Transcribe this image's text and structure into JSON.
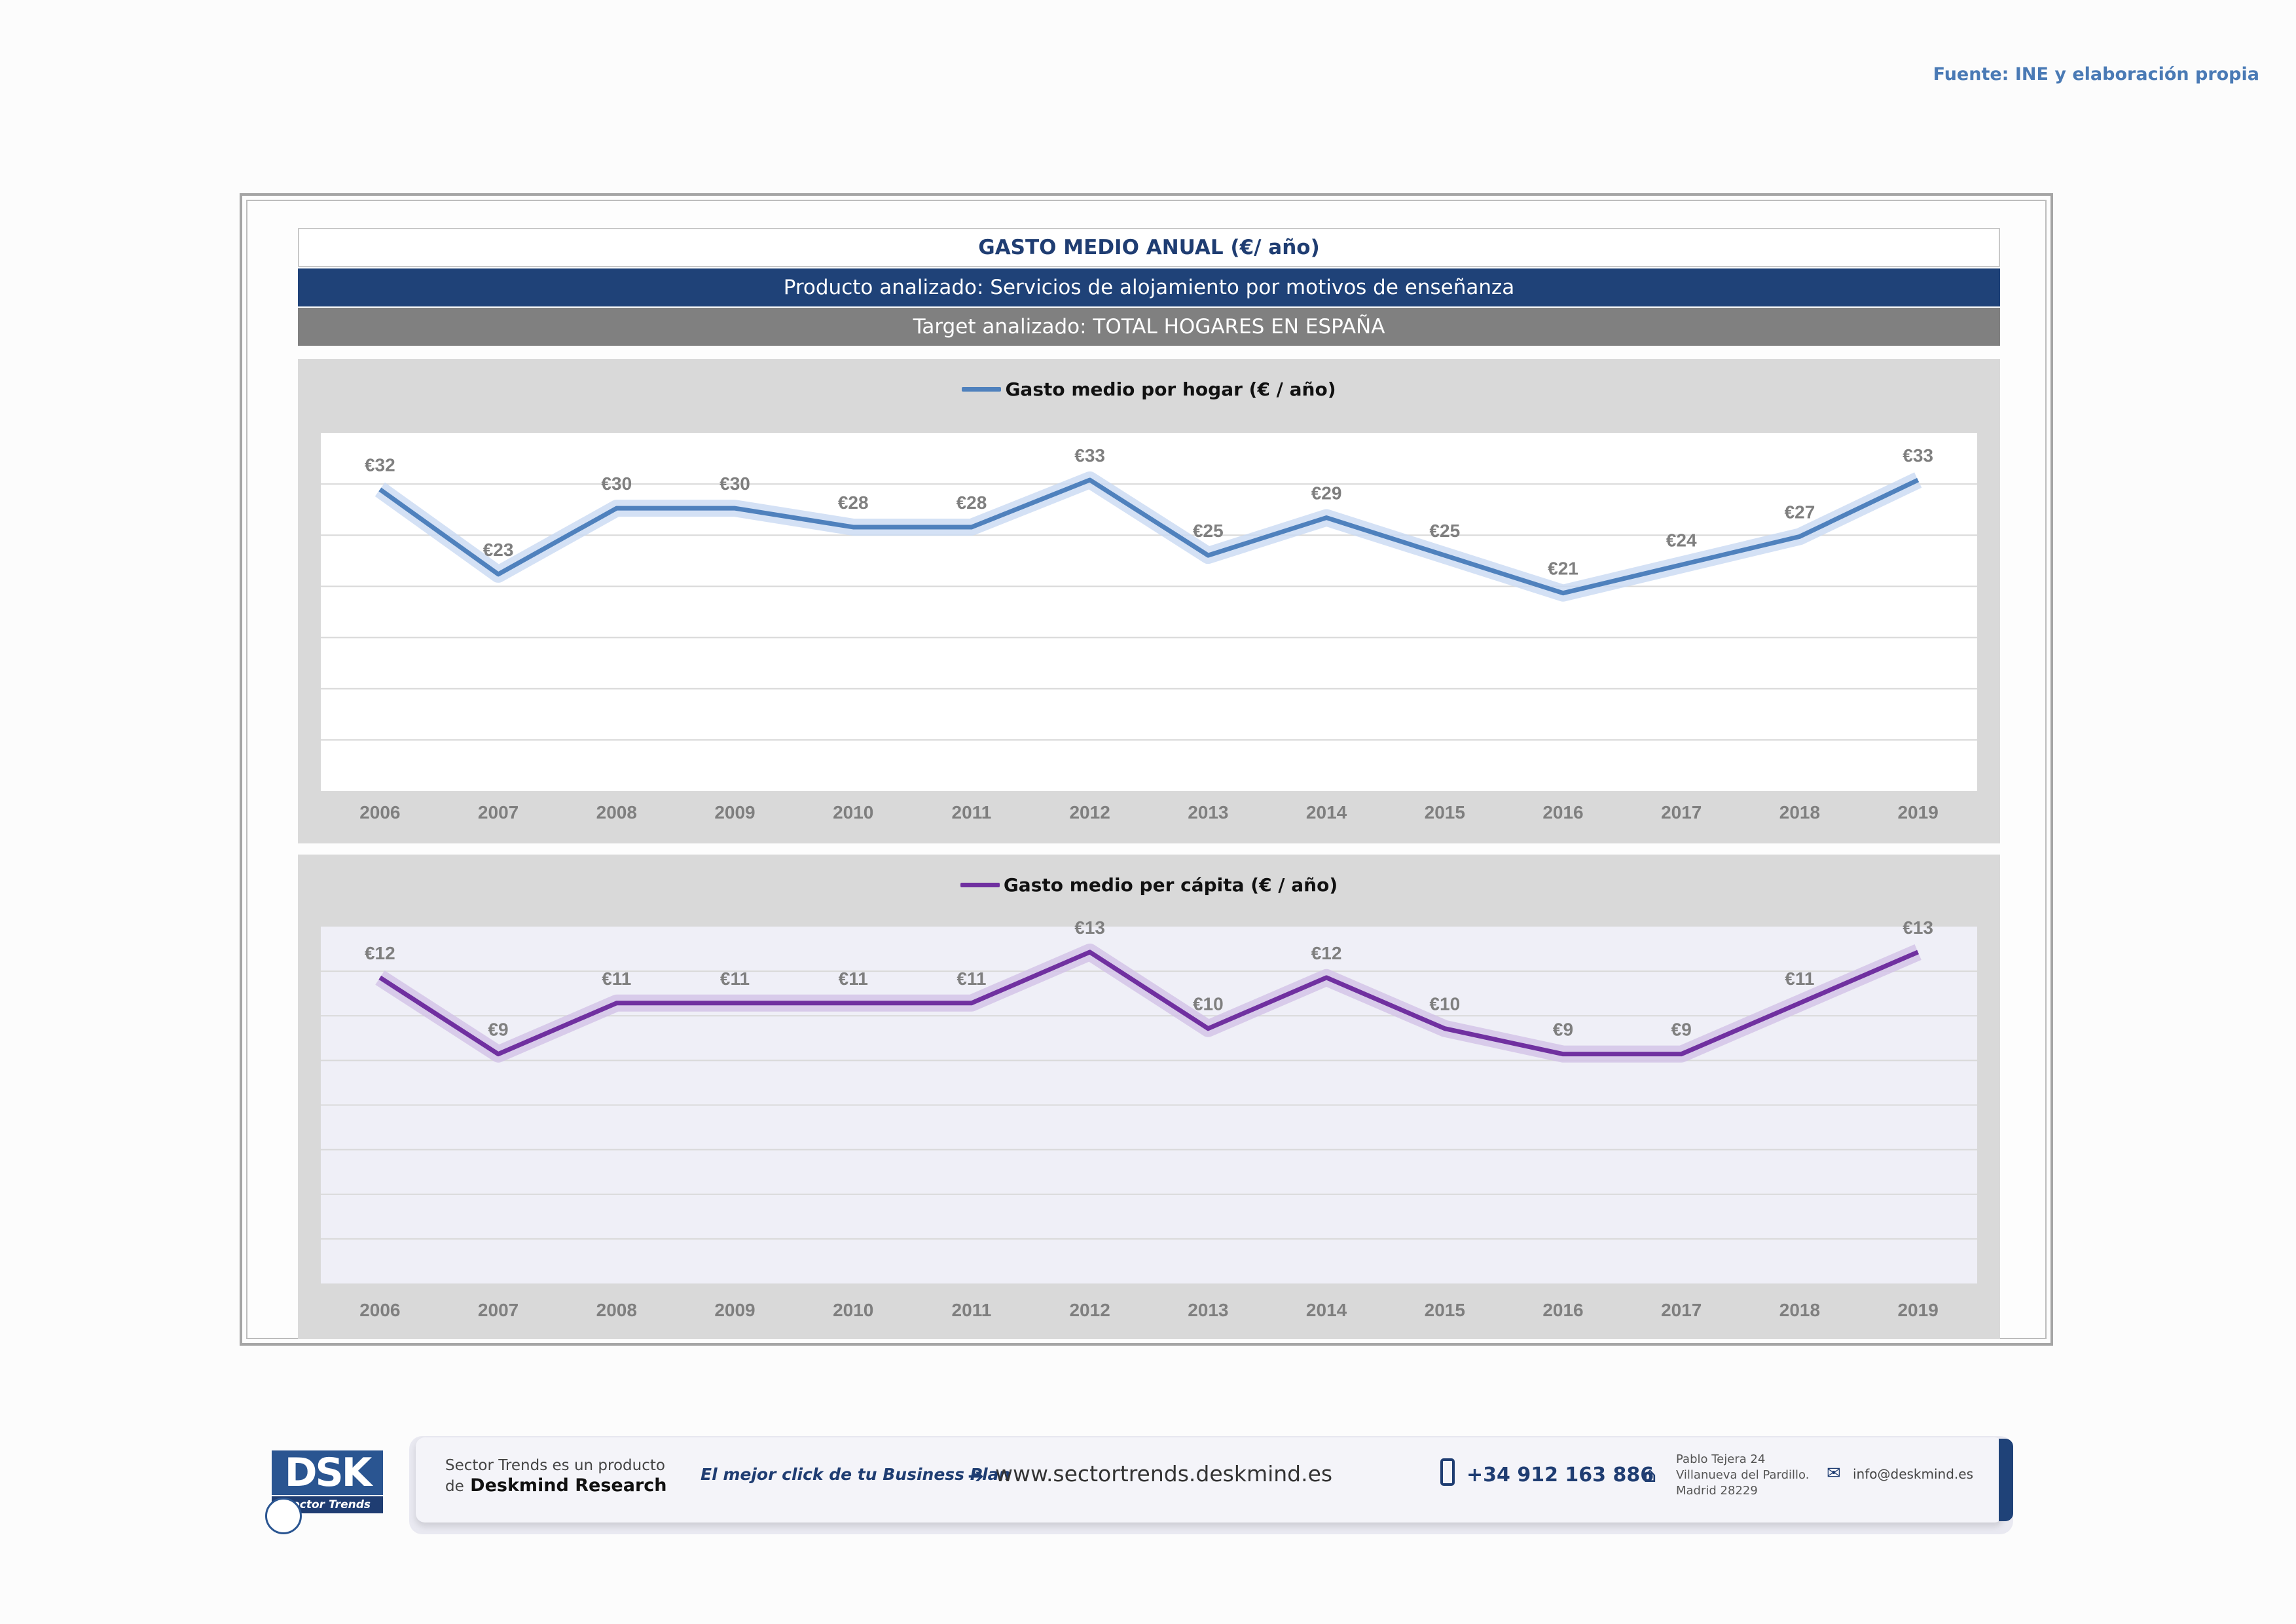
{
  "source": "Fuente: INE y elaboración propia",
  "header": {
    "title": "GASTO MEDIO ANUAL (€/ año)",
    "product": "Producto analizado: Servicios de alojamiento por motivos de enseñanza",
    "target": "Target analizado: TOTAL HOGARES EN ESPAÑA"
  },
  "colors": {
    "series_hogar": "#4f81bd",
    "series_capita": "#7030a0",
    "header_dark": "#1f4278",
    "header_gray": "#808080"
  },
  "chart_data": [
    {
      "type": "line",
      "x": [
        "2006",
        "2007",
        "2008",
        "2009",
        "2010",
        "2011",
        "2012",
        "2013",
        "2014",
        "2015",
        "2016",
        "2017",
        "2018",
        "2019"
      ],
      "series": [
        {
          "name": "Gasto medio por hogar  (€ / año)",
          "values": [
            32,
            23,
            30,
            30,
            28,
            28,
            33,
            25,
            29,
            25,
            21,
            24,
            27,
            33
          ],
          "labels": [
            "€32",
            "€23",
            "€30",
            "€30",
            "€28",
            "€28",
            "€33",
            "€25",
            "€29",
            "€25",
            "€21",
            "€24",
            "€27",
            "€33"
          ]
        }
      ],
      "ylim": [
        0,
        38
      ],
      "legend": "top",
      "grid": true
    },
    {
      "type": "line",
      "x": [
        "2006",
        "2007",
        "2008",
        "2009",
        "2010",
        "2011",
        "2012",
        "2013",
        "2014",
        "2015",
        "2016",
        "2017",
        "2018",
        "2019"
      ],
      "series": [
        {
          "name": "Gasto medio per cápita  (€ / año)",
          "values": [
            12,
            9,
            11,
            11,
            11,
            11,
            13,
            10,
            12,
            10,
            9,
            9,
            11,
            13
          ],
          "labels": [
            "€12",
            "€9",
            "€11",
            "€11",
            "€11",
            "€11",
            "€13",
            "€10",
            "€12",
            "€10",
            "€9",
            "€9",
            "€11",
            "€13"
          ]
        }
      ],
      "ylim": [
        0,
        14
      ],
      "legend": "top",
      "grid": true
    }
  ],
  "footer": {
    "logo_text": "DSK",
    "logo_sub": "Sector Trends",
    "producto_line1": "Sector Trends es un producto",
    "producto_pre": "de",
    "producto_brand": "Deskmind Research",
    "slogan": "El mejor click de tu Business Plan",
    "website": "www.sectortrends.deskmind.es",
    "phone": "+34 912 163 886",
    "address_line1": "Pablo Tejera 24",
    "address_line2": "Villanueva del Pardillo.",
    "address_line3": "Madrid 28229",
    "email": "info@deskmind.es"
  }
}
